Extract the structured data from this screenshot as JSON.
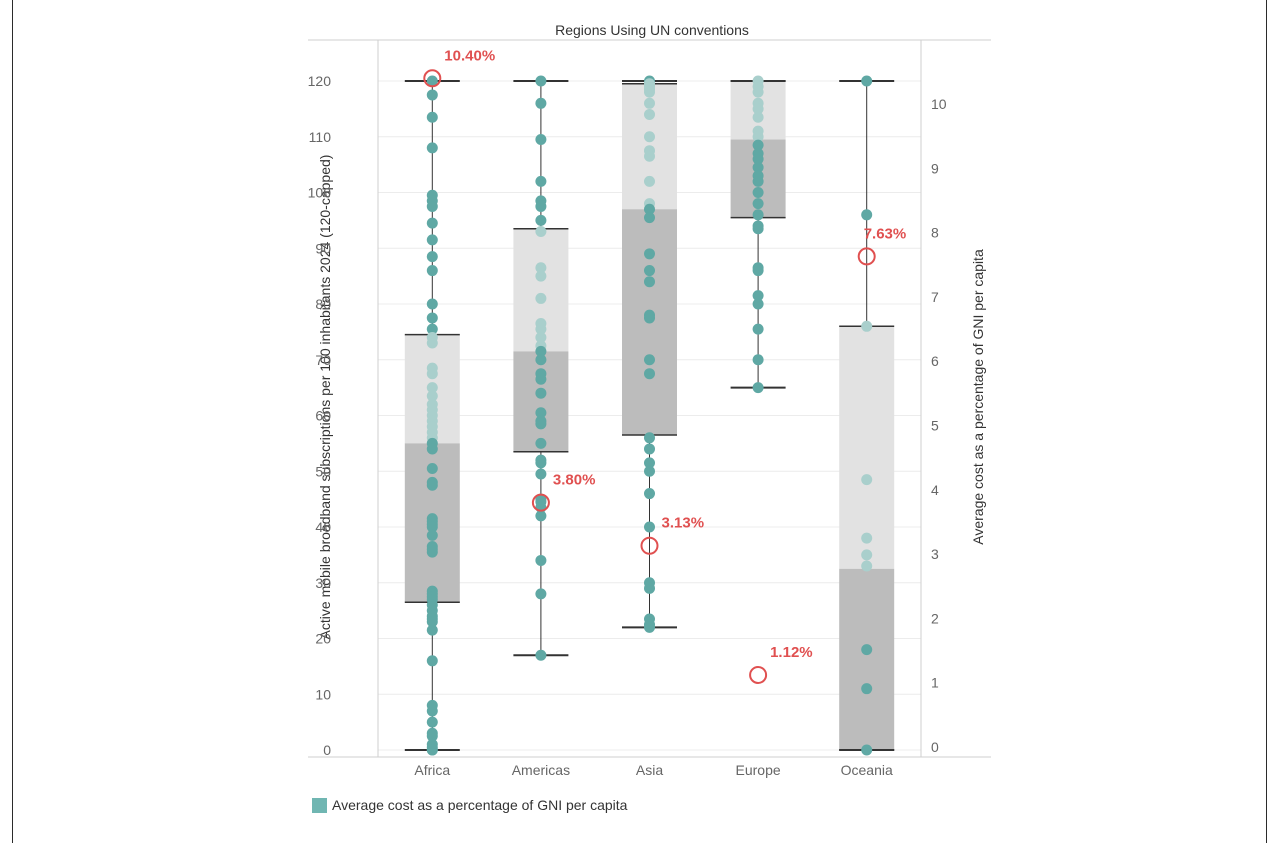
{
  "chart_data": {
    "type": "box-plot",
    "title": "Regions Using UN conventions",
    "ylabel_left": "Active mobile broadband subscriptions per 100 inhabitants 2024 (120-capped)",
    "ylabel_right": "Average cost as a percentage of GNI per capita",
    "ylim_left": [
      -1,
      125
    ],
    "ylim_right": [
      -0.1,
      11.0
    ],
    "yticks_left": [
      "0",
      "10",
      "20",
      "30",
      "40",
      "50",
      "60",
      "70",
      "80",
      "90",
      "100",
      "110",
      "120"
    ],
    "yticks_right": [
      "0",
      "1",
      "2",
      "3",
      "4",
      "5",
      "6",
      "7",
      "8",
      "9",
      "10"
    ],
    "grid": true,
    "categories": [
      "Africa",
      "Americas",
      "Asia",
      "Europe",
      "Oceania"
    ],
    "boxes": [
      {
        "category": "Africa",
        "min": 0,
        "q1": 26.5,
        "median": 55,
        "q3": 74.5,
        "max": 120
      },
      {
        "category": "Americas",
        "min": 17,
        "q1": 53.5,
        "median": 71.5,
        "q3": 93.5,
        "max": 120
      },
      {
        "category": "Asia",
        "min": 22,
        "q1": 56.5,
        "median": 97,
        "q3": 119.5,
        "max": 120
      },
      {
        "category": "Europe",
        "min": 65,
        "q1": 95.5,
        "median": 109.5,
        "q3": 120,
        "max": 120
      },
      {
        "category": "Oceania",
        "min": 0,
        "q1": 0,
        "median": 32.5,
        "q3": 76,
        "max": 120
      }
    ],
    "points": [
      {
        "category": "Africa",
        "values": [
          120,
          117.5,
          113.5,
          108,
          99.5,
          98.5,
          97.5,
          94.5,
          91.5,
          88.5,
          86,
          80,
          77.5,
          75.5,
          74,
          73,
          68.5,
          67.5,
          65,
          63.5,
          62,
          61,
          60,
          59,
          58,
          57,
          56,
          55,
          54,
          50.5,
          48,
          47.5,
          41.5,
          41,
          40.5,
          40,
          38.5,
          36.5,
          36,
          35.5,
          28.5,
          28,
          27.5,
          27,
          26,
          25,
          24,
          23.5,
          23,
          21.5,
          16,
          8,
          7,
          5,
          3,
          2.5,
          1,
          0.5,
          0,
          0
        ]
      },
      {
        "category": "Americas",
        "values": [
          120,
          116,
          109.5,
          102,
          98.5,
          97.5,
          95,
          93,
          86.5,
          85,
          81,
          76.5,
          75.5,
          74,
          72.5,
          71.5,
          70,
          67.5,
          66.5,
          64,
          60.5,
          59,
          58.5,
          55,
          52,
          51.5,
          49.5,
          45,
          44.5,
          43.5,
          42,
          34,
          28,
          17
        ]
      },
      {
        "category": "Asia",
        "values": [
          120,
          119.5,
          119,
          118.5,
          118,
          116,
          114,
          110,
          107.5,
          106.5,
          102,
          98,
          97,
          95.5,
          89,
          86,
          84,
          78,
          77.5,
          70,
          67.5,
          56,
          54,
          51.5,
          50,
          46,
          40,
          30,
          29,
          23.5,
          22.5,
          22
        ]
      },
      {
        "category": "Europe",
        "values": [
          120,
          119,
          118,
          116,
          115,
          113.5,
          111,
          110,
          108.5,
          107,
          106,
          104.5,
          103,
          102,
          100,
          98,
          96,
          94,
          93.5,
          86.5,
          86,
          81.5,
          80,
          75.5,
          70,
          65
        ]
      },
      {
        "category": "Oceania",
        "values": [
          120,
          96,
          76,
          48.5,
          38,
          35,
          33,
          18,
          11,
          0
        ]
      }
    ],
    "gni_markers": [
      {
        "category": "Africa",
        "value": 10.4,
        "label": "10.40%"
      },
      {
        "category": "Americas",
        "value": 3.8,
        "label": "3.80%"
      },
      {
        "category": "Asia",
        "value": 3.13,
        "label": "3.13%"
      },
      {
        "category": "Europe",
        "value": 1.12,
        "label": "1.12%"
      },
      {
        "category": "Oceania",
        "value": 7.63,
        "label": "7.63%"
      }
    ],
    "colors": {
      "point": "#5fa8a4",
      "point_light": "#a9cfcc",
      "box_lower": "#bcbcbc",
      "box_upper": "#e2e2e2",
      "whisker": "#333333",
      "marker": "#e05050"
    },
    "legend": {
      "label": "Average cost as a percentage of GNI per capita",
      "color": "#70b6b2",
      "position": "bottom-left"
    }
  }
}
